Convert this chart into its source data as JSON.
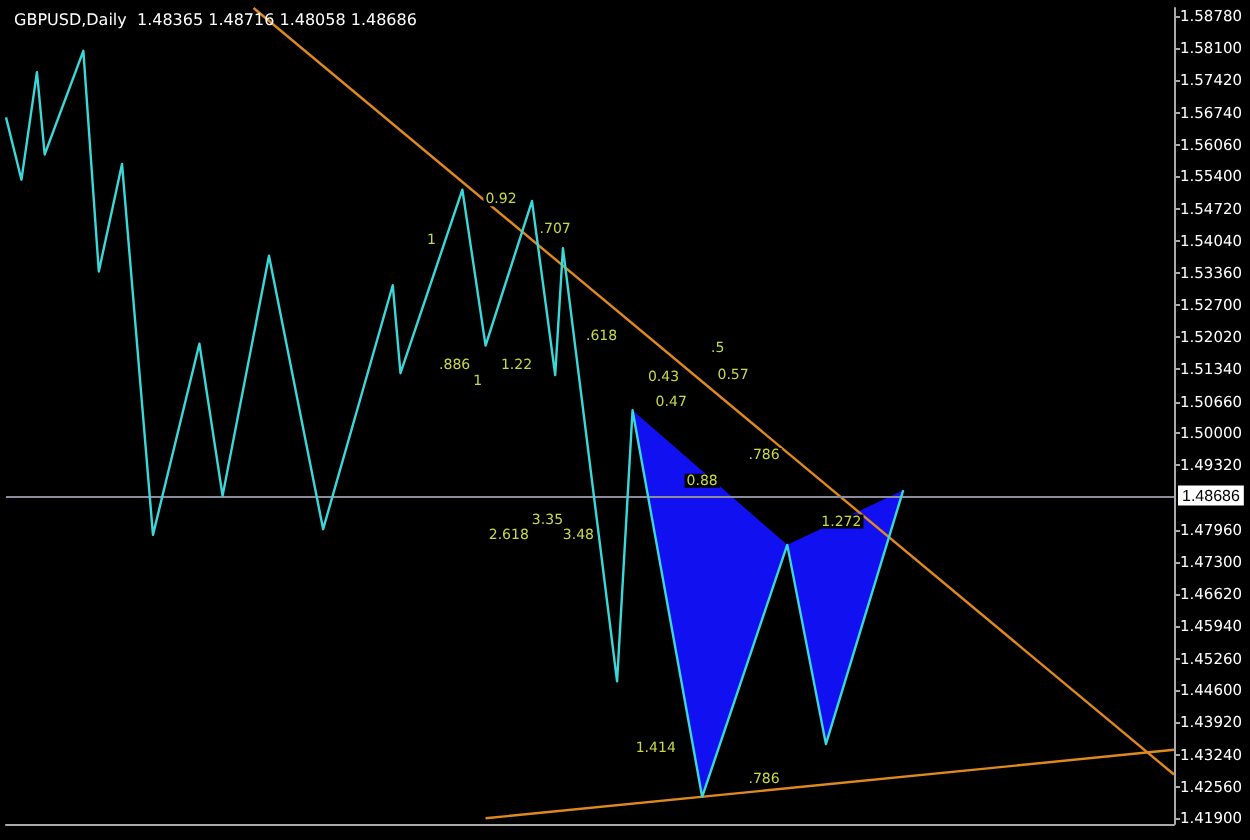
{
  "chart_data": {
    "type": "line",
    "title": "GBPUSD,Daily  1.48365 1.48716 1.48058 1.48686",
    "categories": [
      null,
      null,
      null,
      null,
      null,
      null,
      null,
      null,
      null,
      null,
      null,
      null,
      null,
      null,
      null,
      null,
      null,
      null,
      null,
      null,
      null,
      null,
      null,
      null,
      null,
      null,
      null,
      null,
      null,
      null,
      null,
      null,
      null,
      null,
      null,
      null,
      null,
      null,
      null,
      null,
      null,
      null,
      null,
      null,
      null,
      null,
      null,
      null,
      null,
      null,
      null,
      null,
      null,
      null,
      null,
      null,
      null,
      null,
      null,
      null,
      null,
      null,
      null,
      null,
      null,
      null,
      null,
      null,
      null,
      null,
      null,
      null,
      null,
      null,
      null,
      null,
      null,
      null,
      null,
      null,
      null,
      null,
      null,
      null,
      null,
      null,
      null,
      null,
      null,
      null,
      null,
      null,
      null,
      null,
      null,
      null,
      null,
      null,
      null,
      null,
      null,
      null,
      null,
      null,
      null,
      null,
      null,
      null,
      null,
      null,
      null,
      null,
      null,
      null,
      null,
      null,
      null,
      null,
      null,
      null,
      null,
      null,
      null,
      null,
      null,
      null,
      null,
      null,
      null,
      null,
      null,
      null,
      null,
      null,
      null,
      null,
      null,
      null,
      null,
      null,
      null,
      null,
      null,
      null,
      null,
      null,
      null,
      null,
      null,
      null,
      null,
      null
    ],
    "ylim": [
      1.4178,
      1.5894
    ],
    "grid": false,
    "marker": "none",
    "line_style": "solid",
    "yticks": [
      {
        "value": 1.5878,
        "label": "1.58780"
      },
      {
        "value": 1.581,
        "label": "1.58100"
      },
      {
        "value": 1.5742,
        "label": "1.57420"
      },
      {
        "value": 1.5674,
        "label": "1.56740"
      },
      {
        "value": 1.5606,
        "label": "1.56060"
      },
      {
        "value": 1.554,
        "label": "1.55400"
      },
      {
        "value": 1.5472,
        "label": "1.54720"
      },
      {
        "value": 1.5404,
        "label": "1.54040"
      },
      {
        "value": 1.5336,
        "label": "1.53360"
      },
      {
        "value": 1.527,
        "label": "1.52700"
      },
      {
        "value": 1.5202,
        "label": "1.52020"
      },
      {
        "value": 1.5134,
        "label": "1.51340"
      },
      {
        "value": 1.5066,
        "label": "1.50660"
      },
      {
        "value": 1.5,
        "label": "1.50000"
      },
      {
        "value": 1.4932,
        "label": "1.49320"
      },
      {
        "value": 1.4796,
        "label": "1.47960"
      },
      {
        "value": 1.473,
        "label": "1.47300"
      },
      {
        "value": 1.4662,
        "label": "1.46620"
      },
      {
        "value": 1.4594,
        "label": "1.45940"
      },
      {
        "value": 1.4526,
        "label": "1.45260"
      },
      {
        "value": 1.446,
        "label": "1.44600"
      },
      {
        "value": 1.4392,
        "label": "1.43920"
      },
      {
        "value": 1.4324,
        "label": "1.43240"
      },
      {
        "value": 1.4256,
        "label": "1.42560"
      },
      {
        "value": 1.419,
        "label": "1.41900"
      }
    ],
    "series": [
      {
        "color": "#3ad8d8",
        "values": [
          1.5664,
          null,
          1.5533,
          null,
          1.5759,
          1.5586,
          null,
          null,
          null,
          null,
          1.5804,
          null,
          1.534,
          null,
          null,
          1.5566,
          null,
          null,
          null,
          1.4786,
          null,
          null,
          null,
          null,
          null,
          1.5188,
          null,
          null,
          1.4868,
          null,
          null,
          null,
          null,
          null,
          1.5373,
          null,
          null,
          null,
          null,
          null,
          null,
          1.4798,
          null,
          null,
          null,
          null,
          null,
          null,
          null,
          null,
          1.5311,
          1.5126,
          null,
          null,
          null,
          null,
          null,
          null,
          null,
          1.5512,
          null,
          null,
          1.5184,
          null,
          null,
          null,
          null,
          null,
          1.5488,
          null,
          null,
          1.5122,
          1.5389,
          null,
          null,
          null,
          null,
          null,
          null,
          1.4478,
          null,
          1.5048,
          null,
          null,
          null,
          null,
          null,
          null,
          null,
          null,
          1.4235,
          null,
          null,
          null,
          null,
          null,
          null,
          null,
          null,
          null,
          null,
          1.4765,
          null,
          null,
          null,
          null,
          1.4346,
          null,
          null,
          null,
          null,
          null,
          null,
          null,
          null,
          null,
          1.488,
          null,
          null,
          null,
          null,
          null,
          null,
          null,
          null,
          null,
          null,
          null,
          null,
          null,
          null,
          null,
          null,
          null,
          null,
          null,
          null,
          null,
          null,
          null,
          null,
          null,
          null,
          null,
          null,
          null,
          null,
          null,
          null,
          null,
          null,
          null
        ]
      },
      {
        "color": "#e08a1e",
        "values": [
          null,
          null,
          null,
          null,
          null,
          null,
          null,
          null,
          null,
          null,
          null,
          null,
          null,
          null,
          null,
          null,
          null,
          null,
          null,
          null,
          null,
          null,
          null,
          null,
          null,
          null,
          null,
          null,
          null,
          null,
          null,
          null,
          1.5894,
          null,
          null,
          null,
          null,
          null,
          null,
          null,
          null,
          null,
          null,
          null,
          null,
          null,
          null,
          null,
          null,
          null,
          null,
          null,
          null,
          null,
          null,
          null,
          null,
          null,
          null,
          null,
          null,
          null,
          null,
          null,
          null,
          null,
          null,
          null,
          null,
          null,
          null,
          null,
          null,
          null,
          null,
          null,
          null,
          null,
          null,
          null,
          null,
          null,
          null,
          null,
          null,
          null,
          null,
          null,
          null,
          null,
          null,
          null,
          null,
          null,
          null,
          null,
          null,
          null,
          null,
          null,
          null,
          null,
          null,
          null,
          null,
          null,
          null,
          null,
          null,
          null,
          null,
          null,
          null,
          null,
          null,
          null,
          null,
          null,
          null,
          null,
          null,
          null,
          null,
          null,
          null,
          null,
          null,
          null,
          null,
          null,
          null,
          null,
          null,
          null,
          null,
          null,
          null,
          null,
          null,
          null,
          null,
          null,
          null,
          null,
          null,
          null,
          null,
          null,
          null,
          null,
          null,
          1.4282
        ]
      },
      {
        "color": "#e08a1e",
        "values": [
          null,
          null,
          null,
          null,
          null,
          null,
          null,
          null,
          null,
          null,
          null,
          null,
          null,
          null,
          null,
          null,
          null,
          null,
          null,
          null,
          null,
          null,
          null,
          null,
          null,
          null,
          null,
          null,
          null,
          null,
          null,
          null,
          null,
          null,
          null,
          null,
          null,
          null,
          null,
          null,
          null,
          null,
          null,
          null,
          null,
          null,
          null,
          null,
          null,
          null,
          null,
          null,
          null,
          null,
          null,
          null,
          null,
          null,
          null,
          null,
          null,
          null,
          1.419,
          null,
          null,
          null,
          null,
          null,
          null,
          null,
          null,
          null,
          null,
          null,
          null,
          null,
          null,
          null,
          null,
          null,
          null,
          null,
          null,
          null,
          null,
          null,
          null,
          null,
          null,
          null,
          null,
          null,
          null,
          null,
          null,
          null,
          null,
          null,
          null,
          null,
          null,
          null,
          null,
          null,
          null,
          null,
          null,
          null,
          null,
          null,
          null,
          null,
          null,
          null,
          null,
          null,
          null,
          null,
          null,
          null,
          null,
          null,
          null,
          null,
          null,
          null,
          null,
          null,
          null,
          null,
          null,
          null,
          null,
          null,
          null,
          null,
          null,
          null,
          null,
          null,
          null,
          null,
          null,
          null,
          null,
          null,
          null,
          null,
          null,
          null,
          null,
          1.4334
        ]
      }
    ],
    "ref_lines": [
      {
        "axis": "y",
        "value": 1.48686,
        "label": "1.48686",
        "color": "#8c8c9c"
      }
    ],
    "annotations": [
      {
        "text": "0.92",
        "y": 1.5492
      },
      {
        "text": ".707",
        "y": 1.543
      },
      {
        "text": "1",
        "y": 1.5406
      },
      {
        "text": ".886",
        "y": 1.5143
      },
      {
        "text": "1.22",
        "y": 1.5143
      },
      {
        "text": "1",
        "y": 1.511
      },
      {
        "text": ".618",
        "y": 1.5204
      },
      {
        "text": "0.43",
        "y": 1.5118
      },
      {
        "text": "0.57",
        "y": 1.5122
      },
      {
        "text": ".5",
        "y": 1.518
      },
      {
        "text": "0.47",
        "y": 1.5065
      },
      {
        "text": ".786",
        "y": 1.4954
      },
      {
        "text": "0.88",
        "y": 1.49
      },
      {
        "text": "1.272",
        "y": 1.4814
      },
      {
        "text": "2.618",
        "y": 1.4786
      },
      {
        "text": "3.35",
        "y": 1.4818
      },
      {
        "text": "3.48",
        "y": 1.4786
      },
      {
        "text": "1.414",
        "y": 1.4338
      },
      {
        "text": ".786",
        "y": 1.4272
      }
    ]
  }
}
